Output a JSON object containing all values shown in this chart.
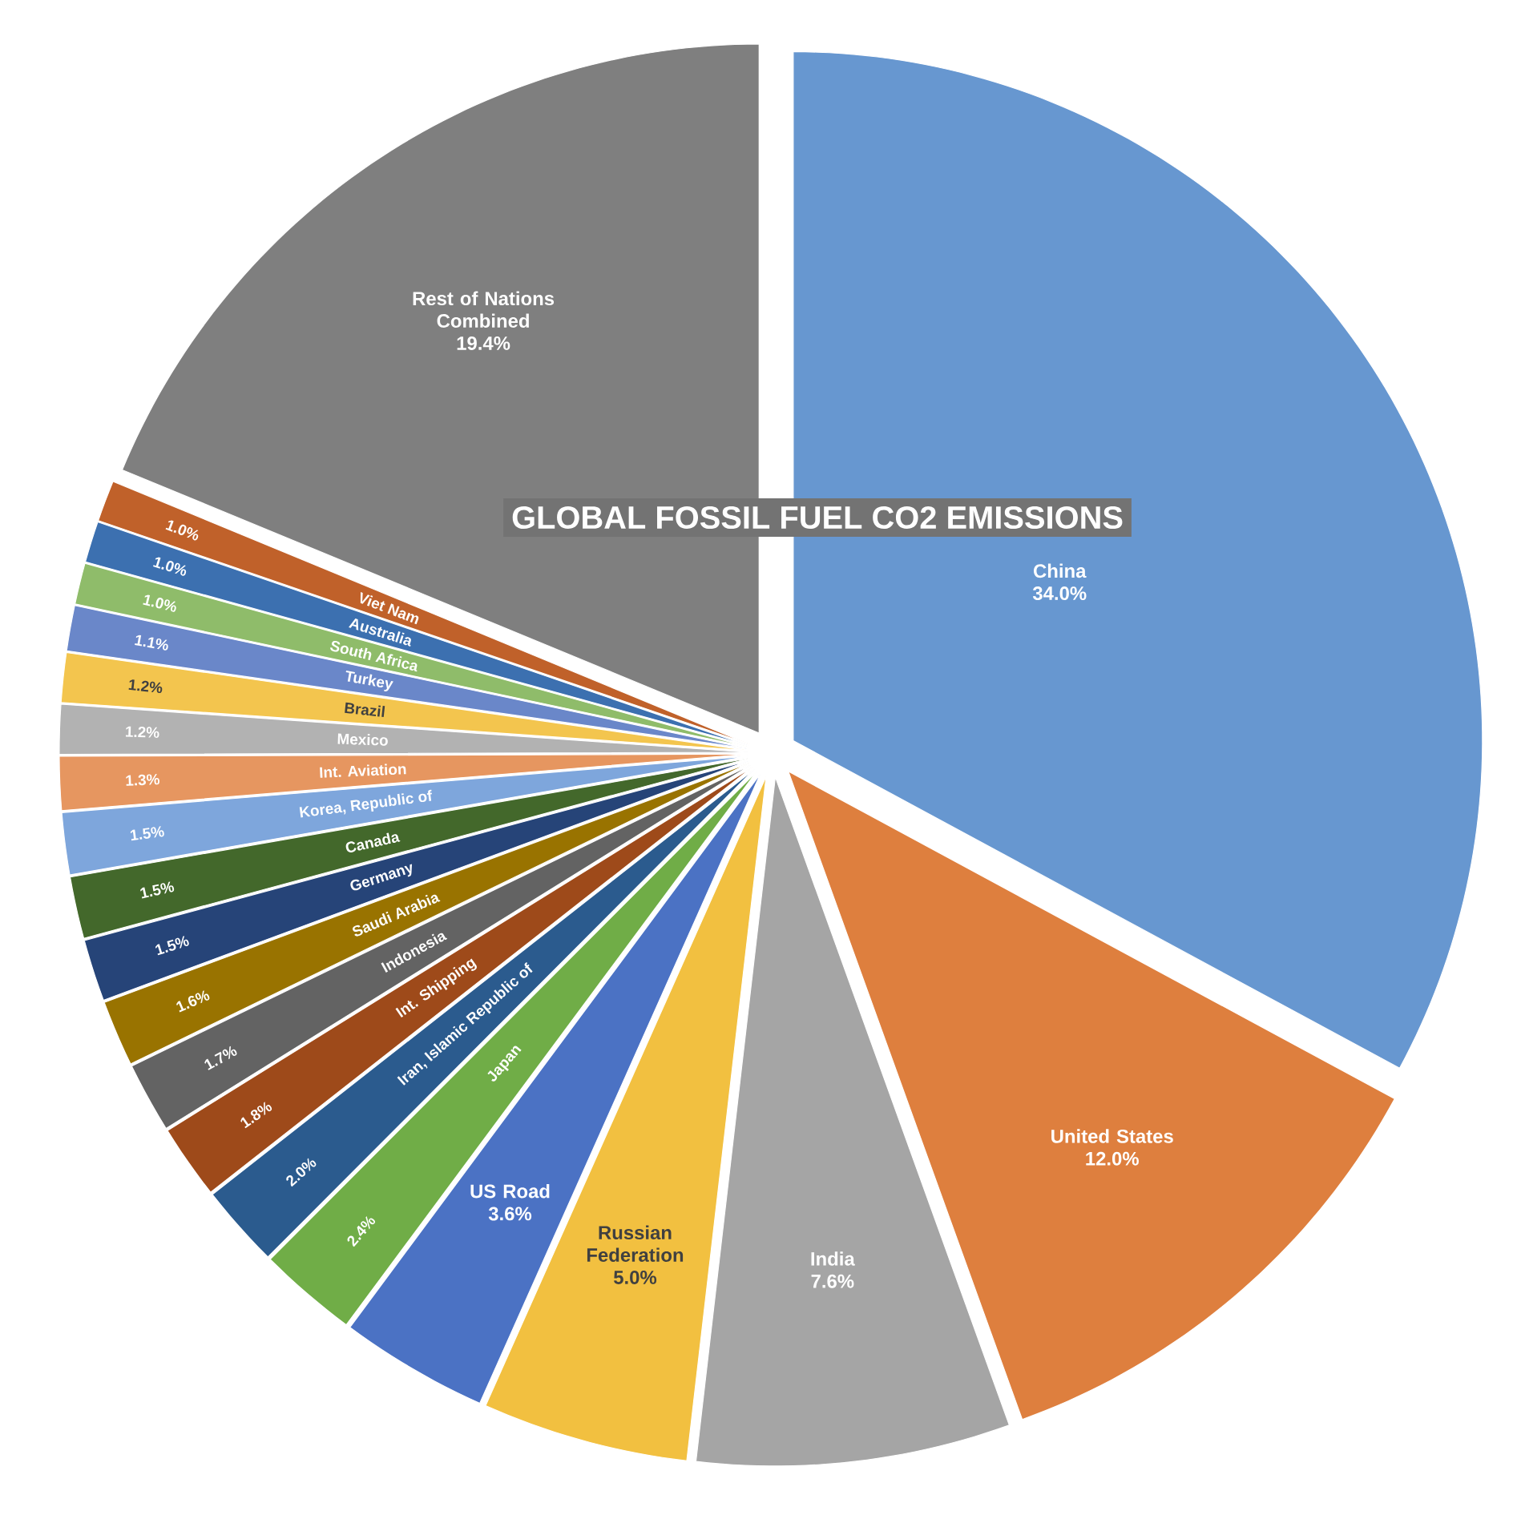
{
  "chart_data": {
    "type": "pie",
    "title": "GLOBAL FOSSIL FUEL CO2 EMISSIONS",
    "categories": [
      "China",
      "United States",
      "India",
      "Russian Federation",
      "US Road",
      "Japan",
      "Iran, Islamic Republic of",
      "Int. Shipping",
      "Indonesia",
      "Saudi Arabia",
      "Germany",
      "Canada",
      "Korea, Republic of",
      "Int. Aviation",
      "Mexico",
      "Brazil",
      "Turkey",
      "South Africa",
      "Australia",
      "Viet Nam",
      "Rest of Nations Combined"
    ],
    "values": [
      34.0,
      12.0,
      7.6,
      5.0,
      3.6,
      2.4,
      2.0,
      1.8,
      1.7,
      1.6,
      1.5,
      1.5,
      1.5,
      1.3,
      1.2,
      1.2,
      1.1,
      1.0,
      1.0,
      1.0,
      19.4
    ],
    "value_labels": [
      "34.0%",
      "12.0%",
      "7.6%",
      "5.0%",
      "3.6%",
      "2.4%",
      "2.0%",
      "1.8%",
      "1.7%",
      "1.6%",
      "1.5%",
      "1.5%",
      "1.5%",
      "1.3%",
      "1.2%",
      "1.2%",
      "1.1%",
      "1.0%",
      "1.0%",
      "1.0%",
      "19.4%"
    ],
    "colors": [
      "#6797d0",
      "#de7f3e",
      "#a5a5a5",
      "#f2c040",
      "#4b72c4",
      "#70ad47",
      "#2b5b8e",
      "#9e4a1a",
      "#636363",
      "#997300",
      "#264478",
      "#43682b",
      "#7ea6dc",
      "#e69660",
      "#b2b2b2",
      "#f3c54e",
      "#6a87c9",
      "#8fbc6a",
      "#3c70b0",
      "#c0612a",
      "#7f7f7f"
    ]
  }
}
